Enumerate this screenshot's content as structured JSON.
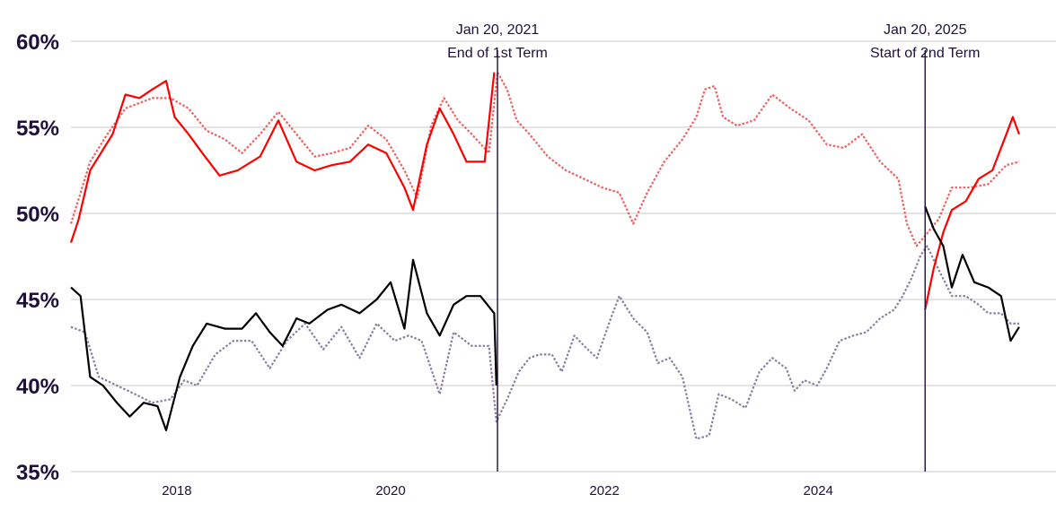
{
  "chart_data": {
    "type": "line",
    "title": "",
    "xlabel": "",
    "ylabel": "",
    "xlim": [
      2017.06,
      2025.93
    ],
    "ylim": [
      35,
      60
    ],
    "grid": "horizontal",
    "y_ticks": [
      {
        "value": 35,
        "label": "35%"
      },
      {
        "value": 40,
        "label": "40%"
      },
      {
        "value": 45,
        "label": "45%"
      },
      {
        "value": 50,
        "label": "50%"
      },
      {
        "value": 55,
        "label": "55%"
      },
      {
        "value": 60,
        "label": "60%"
      }
    ],
    "x_ticks": [
      {
        "value": 2018,
        "label": "2018"
      },
      {
        "value": 2020,
        "label": "2020"
      },
      {
        "value": 2022,
        "label": "2022"
      },
      {
        "value": 2024,
        "label": "2024"
      }
    ],
    "annotations": [
      {
        "x": 2021.05,
        "date": "Jan 20, 2021",
        "label": "End of 1st Term"
      },
      {
        "x": 2025.05,
        "date": "Jan 20, 2025",
        "label": "Start of 2nd Term"
      }
    ],
    "series": [
      {
        "name": "disapprove-comparison",
        "color": "#f06060",
        "style": "dotted",
        "segments": [
          [
            [
              2017.06,
              49.4
            ],
            [
              2017.24,
              53
            ],
            [
              2017.4,
              54.6
            ],
            [
              2017.57,
              56.1
            ],
            [
              2017.82,
              56.7
            ],
            [
              2017.99,
              56.7
            ],
            [
              2018.16,
              56.1
            ],
            [
              2018.33,
              54.8
            ],
            [
              2018.5,
              54.3
            ],
            [
              2018.66,
              53.5
            ],
            [
              2018.83,
              54.6
            ],
            [
              2019.0,
              55.9
            ],
            [
              2019.17,
              54.6
            ],
            [
              2019.34,
              53.3
            ],
            [
              2019.5,
              53.5
            ],
            [
              2019.67,
              53.8
            ],
            [
              2019.84,
              55.1
            ],
            [
              2020.01,
              54.3
            ],
            [
              2020.18,
              52.5
            ],
            [
              2020.3,
              50.9
            ],
            [
              2020.43,
              55.1
            ],
            [
              2020.55,
              56.7
            ],
            [
              2020.68,
              55.4
            ],
            [
              2020.81,
              54.6
            ],
            [
              2020.97,
              53.5
            ],
            [
              2021.05,
              58.2
            ],
            [
              2021.14,
              57.2
            ],
            [
              2021.23,
              55.4
            ],
            [
              2021.35,
              54.6
            ],
            [
              2021.52,
              53.3
            ],
            [
              2021.69,
              52.5
            ],
            [
              2021.86,
              52
            ],
            [
              2022.03,
              51.5
            ],
            [
              2022.19,
              51.2
            ],
            [
              2022.32,
              49.4
            ],
            [
              2022.45,
              51.2
            ],
            [
              2022.61,
              53
            ],
            [
              2022.78,
              54.3
            ],
            [
              2022.91,
              55.6
            ],
            [
              2022.99,
              57.2
            ],
            [
              2023.08,
              57.4
            ],
            [
              2023.16,
              55.6
            ],
            [
              2023.29,
              55.1
            ],
            [
              2023.45,
              55.4
            ],
            [
              2023.62,
              56.9
            ],
            [
              2023.79,
              56.1
            ],
            [
              2023.96,
              55.4
            ],
            [
              2024.13,
              54
            ],
            [
              2024.29,
              53.8
            ],
            [
              2024.46,
              54.6
            ],
            [
              2024.63,
              53
            ],
            [
              2024.8,
              52
            ],
            [
              2024.88,
              49.4
            ],
            [
              2024.97,
              48.1
            ],
            [
              2025.05,
              48.7
            ],
            [
              2025.18,
              49.7
            ],
            [
              2025.3,
              51.5
            ],
            [
              2025.47,
              51.5
            ],
            [
              2025.64,
              51.7
            ],
            [
              2025.81,
              52.8
            ],
            [
              2025.93,
              53
            ]
          ]
        ]
      },
      {
        "name": "approve-comparison",
        "color": "#8a7fa0",
        "style": "dotted",
        "segments": [
          [
            [
              2017.06,
              43.4
            ],
            [
              2017.19,
              43.1
            ],
            [
              2017.32,
              40.5
            ],
            [
              2017.49,
              40
            ],
            [
              2017.66,
              39.5
            ],
            [
              2017.82,
              39
            ],
            [
              2017.99,
              39.2
            ],
            [
              2018.12,
              40.3
            ],
            [
              2018.24,
              40
            ],
            [
              2018.41,
              41.8
            ],
            [
              2018.58,
              42.6
            ],
            [
              2018.75,
              42.6
            ],
            [
              2018.92,
              41
            ],
            [
              2019.08,
              42.6
            ],
            [
              2019.25,
              43.6
            ],
            [
              2019.42,
              42.1
            ],
            [
              2019.59,
              43.4
            ],
            [
              2019.76,
              41.6
            ],
            [
              2019.92,
              43.6
            ],
            [
              2020.09,
              42.6
            ],
            [
              2020.22,
              42.9
            ],
            [
              2020.34,
              42.6
            ],
            [
              2020.51,
              39.5
            ],
            [
              2020.64,
              43.1
            ],
            [
              2020.81,
              42.3
            ],
            [
              2020.97,
              42.3
            ],
            [
              2021.04,
              37.9
            ],
            [
              2021.14,
              39.2
            ],
            [
              2021.25,
              40.8
            ],
            [
              2021.35,
              41.6
            ],
            [
              2021.44,
              41.8
            ],
            [
              2021.56,
              41.8
            ],
            [
              2021.65,
              40.8
            ],
            [
              2021.77,
              42.9
            ],
            [
              2021.86,
              42.3
            ],
            [
              2021.98,
              41.6
            ],
            [
              2022.11,
              43.9
            ],
            [
              2022.19,
              45.2
            ],
            [
              2022.32,
              43.9
            ],
            [
              2022.45,
              43.1
            ],
            [
              2022.55,
              41.3
            ],
            [
              2022.66,
              41.6
            ],
            [
              2022.78,
              40.5
            ],
            [
              2022.91,
              36.9
            ],
            [
              2023.03,
              37.1
            ],
            [
              2023.12,
              39.5
            ],
            [
              2023.24,
              39.2
            ],
            [
              2023.37,
              38.7
            ],
            [
              2023.5,
              40.8
            ],
            [
              2023.62,
              41.6
            ],
            [
              2023.75,
              41
            ],
            [
              2023.83,
              39.7
            ],
            [
              2023.92,
              40.3
            ],
            [
              2024.04,
              40
            ],
            [
              2024.13,
              41
            ],
            [
              2024.25,
              42.6
            ],
            [
              2024.38,
              42.9
            ],
            [
              2024.5,
              43.1
            ],
            [
              2024.63,
              43.9
            ],
            [
              2024.76,
              44.4
            ],
            [
              2024.84,
              45.2
            ],
            [
              2024.92,
              46.2
            ],
            [
              2025.01,
              47.6
            ],
            [
              2025.07,
              48.1
            ],
            [
              2025.13,
              47.3
            ],
            [
              2025.22,
              46.2
            ],
            [
              2025.3,
              45.2
            ],
            [
              2025.43,
              45.2
            ],
            [
              2025.55,
              44.7
            ],
            [
              2025.64,
              44.2
            ],
            [
              2025.76,
              44.2
            ],
            [
              2025.85,
              43.6
            ],
            [
              2025.93,
              43.6
            ]
          ]
        ]
      },
      {
        "name": "disapprove",
        "color": "#ff0000",
        "style": "solid",
        "segments": [
          [
            [
              2017.06,
              48.3
            ],
            [
              2017.13,
              49.6
            ],
            [
              2017.24,
              52.5
            ],
            [
              2017.32,
              53.3
            ],
            [
              2017.45,
              54.6
            ],
            [
              2017.57,
              56.9
            ],
            [
              2017.7,
              56.7
            ],
            [
              2017.82,
              57.2
            ],
            [
              2017.95,
              57.7
            ],
            [
              2018.03,
              55.6
            ],
            [
              2018.16,
              54.6
            ],
            [
              2018.29,
              53.5
            ],
            [
              2018.45,
              52.2
            ],
            [
              2018.62,
              52.5
            ],
            [
              2018.83,
              53.3
            ],
            [
              2019.0,
              55.4
            ],
            [
              2019.17,
              53
            ],
            [
              2019.34,
              52.5
            ],
            [
              2019.5,
              52.8
            ],
            [
              2019.67,
              53
            ],
            [
              2019.84,
              54
            ],
            [
              2020.01,
              53.5
            ],
            [
              2020.18,
              51.5
            ],
            [
              2020.26,
              50.2
            ],
            [
              2020.39,
              54
            ],
            [
              2020.51,
              56.1
            ],
            [
              2020.64,
              54.6
            ],
            [
              2020.76,
              53
            ],
            [
              2020.93,
              53
            ],
            [
              2021.02,
              58.2
            ]
          ],
          [
            [
              2025.05,
              44.4
            ],
            [
              2025.13,
              46.8
            ],
            [
              2025.22,
              48.9
            ],
            [
              2025.3,
              50.2
            ],
            [
              2025.43,
              50.7
            ],
            [
              2025.55,
              52
            ],
            [
              2025.68,
              52.5
            ],
            [
              2025.81,
              54.6
            ],
            [
              2025.87,
              55.6
            ],
            [
              2025.93,
              54.6
            ]
          ]
        ]
      },
      {
        "name": "approve",
        "color": "#000000",
        "style": "solid",
        "segments": [
          [
            [
              2017.06,
              45.7
            ],
            [
              2017.15,
              45.2
            ],
            [
              2017.24,
              40.5
            ],
            [
              2017.36,
              40
            ],
            [
              2017.49,
              39
            ],
            [
              2017.61,
              38.2
            ],
            [
              2017.74,
              39
            ],
            [
              2017.87,
              38.8
            ],
            [
              2017.95,
              37.4
            ],
            [
              2018.08,
              40.5
            ],
            [
              2018.2,
              42.3
            ],
            [
              2018.33,
              43.6
            ],
            [
              2018.5,
              43.3
            ],
            [
              2018.66,
              43.3
            ],
            [
              2018.79,
              44.2
            ],
            [
              2018.92,
              43.1
            ],
            [
              2019.04,
              42.3
            ],
            [
              2019.17,
              43.9
            ],
            [
              2019.29,
              43.6
            ],
            [
              2019.46,
              44.4
            ],
            [
              2019.59,
              44.7
            ],
            [
              2019.76,
              44.2
            ],
            [
              2019.92,
              45
            ],
            [
              2020.05,
              46
            ],
            [
              2020.18,
              43.3
            ],
            [
              2020.26,
              47.3
            ],
            [
              2020.39,
              44.2
            ],
            [
              2020.51,
              42.9
            ],
            [
              2020.64,
              44.7
            ],
            [
              2020.76,
              45.2
            ],
            [
              2020.89,
              45.2
            ],
            [
              2021.02,
              44.2
            ],
            [
              2021.04,
              40
            ]
          ],
          [
            [
              2025.05,
              50.4
            ],
            [
              2025.13,
              49.1
            ],
            [
              2025.22,
              48.1
            ],
            [
              2025.3,
              45.7
            ],
            [
              2025.4,
              47.6
            ],
            [
              2025.51,
              46
            ],
            [
              2025.64,
              45.7
            ],
            [
              2025.76,
              45.2
            ],
            [
              2025.85,
              42.6
            ],
            [
              2025.93,
              43.4
            ]
          ]
        ]
      }
    ]
  }
}
